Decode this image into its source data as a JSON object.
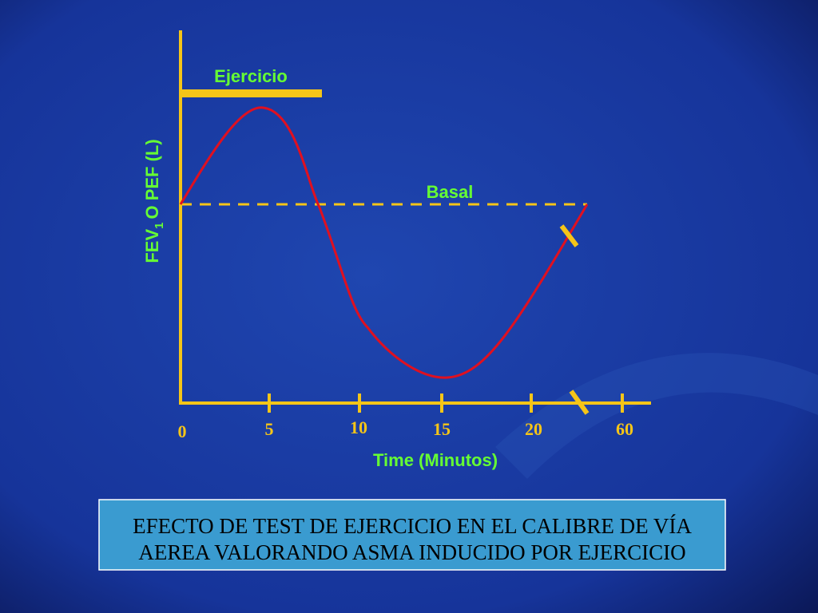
{
  "ejercicio_label": "Ejercicio",
  "basal_label": "Basal",
  "y_axis_label": {
    "main": "FEV",
    "sub": "1",
    "rest": "O PEF (L)"
  },
  "x_ticks": [
    "0",
    "5",
    "10",
    "15",
    "20",
    "60"
  ],
  "x_axis_label": "Time (Minutos)",
  "caption": [
    "EFECTO DE TEST DE EJERCICIO EN EL CALIBRE DE VÍA",
    "AEREA VALORANDO ASMA INDUCIDO POR EJERCICIO"
  ]
}
